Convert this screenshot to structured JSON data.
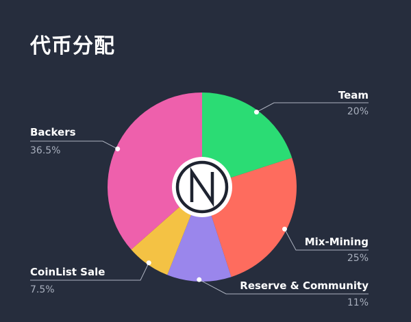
{
  "title": "代币分配",
  "chart_data": {
    "type": "pie",
    "slices": [
      {
        "name": "Team",
        "value": 20,
        "value_label": "20%",
        "color": "#2bdc74"
      },
      {
        "name": "Mix-Mining",
        "value": 25,
        "value_label": "25%",
        "color": "#fe6c5e"
      },
      {
        "name": "Reserve & Community",
        "value": 11,
        "value_label": "11%",
        "color": "#9a86ec"
      },
      {
        "name": "CoinList Sale",
        "value": 7.5,
        "value_label": "7.5%",
        "color": "#f4c244"
      },
      {
        "name": "Backers",
        "value": 36.5,
        "value_label": "36.5%",
        "color": "#ee60ac"
      }
    ],
    "start_angle_deg": 0,
    "direction": "clockwise",
    "center_logo": {
      "icon": "nym-logo-icon",
      "text": "N"
    }
  }
}
